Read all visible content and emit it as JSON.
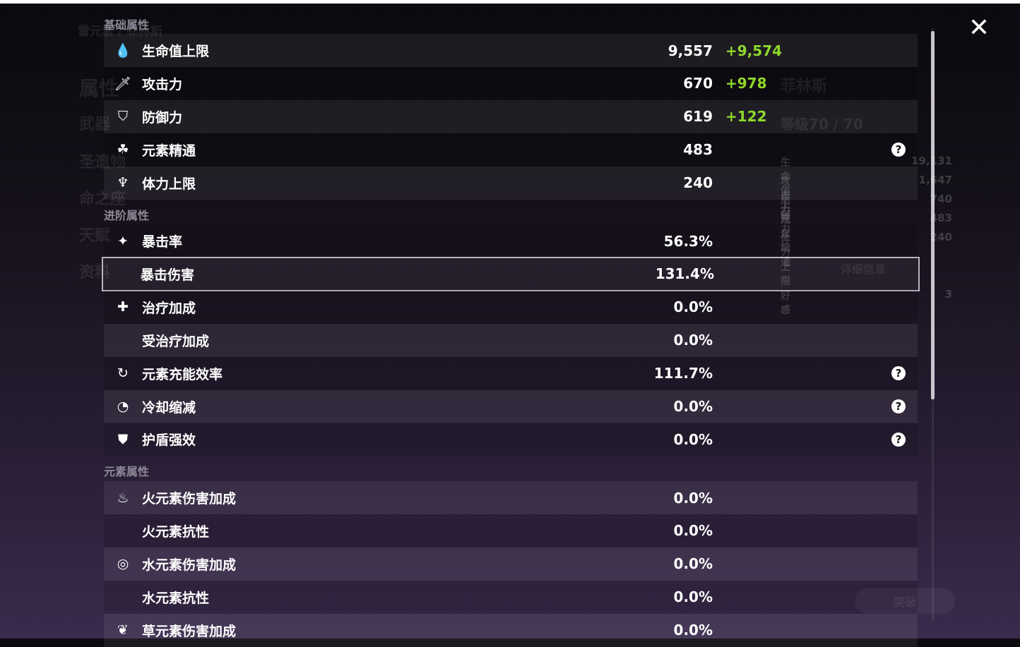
{
  "close_icon": "close-icon",
  "background": {
    "character_title": "雷元素 / 菲林斯",
    "menu": [
      "属性",
      "武器",
      "圣遗物",
      "命之座",
      "天赋",
      "资料"
    ],
    "name": "菲林斯",
    "level": "等级70 / 70",
    "detail_button": "详细信息",
    "breakthrough_button": "突破",
    "stats": [
      [
        "生命值上限",
        "19,131"
      ],
      [
        "攻击力",
        "1,647"
      ],
      [
        "防御力",
        "740"
      ],
      [
        "元素精通",
        "483"
      ],
      [
        "体力上限",
        "240"
      ]
    ],
    "friendship_label": "好感",
    "friendship_value": "3"
  },
  "sections": [
    {
      "title": "基础属性",
      "rows": [
        {
          "icon": "hp-drop-icon",
          "glyph": "💧",
          "label": "生命值上限",
          "value": "9,557",
          "bonus": "+9,574"
        },
        {
          "icon": "sword-icon",
          "glyph": "🗡",
          "label": "攻击力",
          "value": "670",
          "bonus": "+978"
        },
        {
          "icon": "shield-icon",
          "glyph": "⛉",
          "label": "防御力",
          "value": "619",
          "bonus": "+122"
        },
        {
          "icon": "elemental-mastery-icon",
          "glyph": "☘",
          "label": "元素精通",
          "value": "483",
          "help": true
        },
        {
          "icon": "stamina-icon",
          "glyph": "♆",
          "label": "体力上限",
          "value": "240"
        }
      ]
    },
    {
      "title": "进阶属性",
      "rows": [
        {
          "icon": "crit-rate-icon",
          "glyph": "✦",
          "label": "暴击率",
          "value": "56.3%"
        },
        {
          "icon": "",
          "label": "暴击伤害",
          "value": "131.4%",
          "selected": true
        },
        {
          "icon": "healing-cross-icon",
          "glyph": "✚",
          "label": "治疗加成",
          "value": "0.0%"
        },
        {
          "icon": "",
          "label": "受治疗加成",
          "value": "0.0%"
        },
        {
          "icon": "energy-recharge-icon",
          "glyph": "↻",
          "label": "元素充能效率",
          "value": "111.7%",
          "help": true
        },
        {
          "icon": "cooldown-icon",
          "glyph": "◔",
          "label": "冷却缩减",
          "value": "0.0%",
          "help": true
        },
        {
          "icon": "shield-strength-icon",
          "glyph": "⛊",
          "label": "护盾强效",
          "value": "0.0%",
          "help": true
        }
      ]
    },
    {
      "title": "元素属性",
      "rows": [
        {
          "icon": "pyro-icon",
          "glyph": "♨",
          "label": "火元素伤害加成",
          "value": "0.0%"
        },
        {
          "icon": "",
          "label": "火元素抗性",
          "value": "0.0%"
        },
        {
          "icon": "hydro-icon",
          "glyph": "◎",
          "label": "水元素伤害加成",
          "value": "0.0%"
        },
        {
          "icon": "",
          "label": "水元素抗性",
          "value": "0.0%"
        },
        {
          "icon": "dendro-icon",
          "glyph": "❦",
          "label": "草元素伤害加成",
          "value": "0.0%"
        }
      ]
    }
  ],
  "colors": {
    "bonus": "#8fd82a",
    "section_title": "#8d8896"
  }
}
